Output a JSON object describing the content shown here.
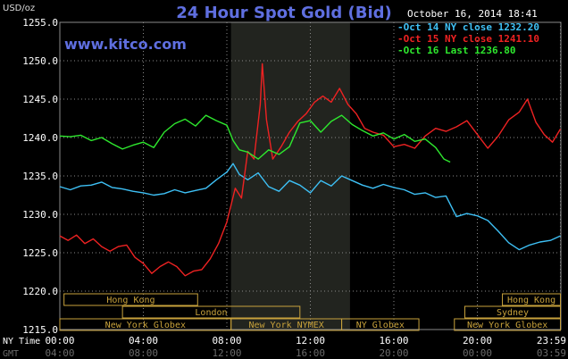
{
  "header": {
    "title": "24 Hour Spot Gold (Bid)",
    "watermark": "www.kitco.com",
    "unit": "USD/oz",
    "timestamp": "October 16, 2014 18:41"
  },
  "colors": {
    "background": "#000000",
    "frame": "#8a8a8a",
    "highlight": "#22241f",
    "market_box": "#c8a23c",
    "tick_text": "#ffffff",
    "axis_label_top": "#ffffff",
    "axis_label_bottom": "#6a6a6a"
  },
  "chart_data": {
    "type": "line",
    "title": "24 Hour Spot Gold (Bid)",
    "ylabel": "USD/oz",
    "ylim": [
      1215,
      1255
    ],
    "yticks": [
      "1255.0",
      "1250.0",
      "1245.0",
      "1240.0",
      "1235.0",
      "1230.0",
      "1225.0",
      "1220.0",
      "1215.0"
    ],
    "ytick_values": [
      1255,
      1250,
      1245,
      1240,
      1235,
      1230,
      1225,
      1220,
      1215
    ],
    "xlim": [
      0,
      24
    ],
    "x_axis_rows": [
      {
        "label": "NY Time",
        "ticks": [
          "00:00",
          "04:00",
          "08:00",
          "12:00",
          "16:00",
          "20:00",
          "23:59"
        ]
      },
      {
        "label": "GMT",
        "ticks": [
          "04:00",
          "08:00",
          "12:00",
          "16:00",
          "20:00",
          "00:00",
          "03:59"
        ]
      }
    ],
    "xtick_hours": [
      0,
      4,
      8,
      12,
      16,
      20,
      23.98
    ],
    "highlight_hours": [
      8.2,
      13.9
    ],
    "grid": true,
    "legend_position": "top-right",
    "series": [
      {
        "name": "Oct 14 NY close 1232.20",
        "color": "#3ec0f5",
        "points": [
          [
            0,
            1233.6
          ],
          [
            0.5,
            1233.2
          ],
          [
            1,
            1233.7
          ],
          [
            1.5,
            1233.8
          ],
          [
            2,
            1234.2
          ],
          [
            2.5,
            1233.5
          ],
          [
            3,
            1233.3
          ],
          [
            3.5,
            1233.0
          ],
          [
            4,
            1232.8
          ],
          [
            4.5,
            1232.5
          ],
          [
            5,
            1232.7
          ],
          [
            5.5,
            1233.2
          ],
          [
            6,
            1232.8
          ],
          [
            6.5,
            1233.1
          ],
          [
            7,
            1233.4
          ],
          [
            7.5,
            1234.5
          ],
          [
            8,
            1235.5
          ],
          [
            8.3,
            1236.6
          ],
          [
            8.6,
            1235.2
          ],
          [
            9,
            1234.5
          ],
          [
            9.5,
            1235.4
          ],
          [
            10,
            1233.6
          ],
          [
            10.5,
            1233.0
          ],
          [
            11,
            1234.4
          ],
          [
            11.5,
            1233.8
          ],
          [
            12,
            1232.8
          ],
          [
            12.5,
            1234.4
          ],
          [
            13,
            1233.7
          ],
          [
            13.5,
            1235.0
          ],
          [
            14,
            1234.4
          ],
          [
            14.5,
            1233.8
          ],
          [
            15,
            1233.4
          ],
          [
            15.5,
            1233.9
          ],
          [
            16,
            1233.5
          ],
          [
            16.5,
            1233.2
          ],
          [
            17,
            1232.6
          ],
          [
            17.5,
            1232.8
          ],
          [
            18,
            1232.2
          ],
          [
            18.5,
            1232.4
          ],
          [
            19,
            1229.7
          ],
          [
            19.5,
            1230.1
          ],
          [
            20,
            1229.8
          ],
          [
            20.5,
            1229.2
          ],
          [
            21,
            1227.8
          ],
          [
            21.5,
            1226.3
          ],
          [
            22,
            1225.4
          ],
          [
            22.5,
            1226.0
          ],
          [
            23,
            1226.4
          ],
          [
            23.5,
            1226.6
          ],
          [
            23.98,
            1227.2
          ]
        ]
      },
      {
        "name": "Oct 15 NY close 1241.10",
        "color": "#ee2222",
        "points": [
          [
            0,
            1227.2
          ],
          [
            0.4,
            1226.6
          ],
          [
            0.8,
            1227.3
          ],
          [
            1.2,
            1226.2
          ],
          [
            1.6,
            1226.8
          ],
          [
            2,
            1225.8
          ],
          [
            2.4,
            1225.2
          ],
          [
            2.8,
            1225.8
          ],
          [
            3.2,
            1226.0
          ],
          [
            3.6,
            1224.4
          ],
          [
            4,
            1223.6
          ],
          [
            4.4,
            1222.3
          ],
          [
            4.8,
            1223.2
          ],
          [
            5.2,
            1223.8
          ],
          [
            5.6,
            1223.2
          ],
          [
            6,
            1222.0
          ],
          [
            6.4,
            1222.6
          ],
          [
            6.8,
            1222.8
          ],
          [
            7.2,
            1224.2
          ],
          [
            7.6,
            1226.2
          ],
          [
            8,
            1229.0
          ],
          [
            8.4,
            1233.4
          ],
          [
            8.7,
            1232.1
          ],
          [
            9,
            1238.2
          ],
          [
            9.3,
            1237.2
          ],
          [
            9.6,
            1244.3
          ],
          [
            9.7,
            1249.6
          ],
          [
            9.9,
            1242.3
          ],
          [
            10.2,
            1237.2
          ],
          [
            10.6,
            1238.8
          ],
          [
            11,
            1240.7
          ],
          [
            11.4,
            1242.1
          ],
          [
            11.8,
            1243.1
          ],
          [
            12.2,
            1244.6
          ],
          [
            12.6,
            1245.4
          ],
          [
            13,
            1244.6
          ],
          [
            13.4,
            1246.4
          ],
          [
            13.8,
            1244.3
          ],
          [
            14.2,
            1243.1
          ],
          [
            14.6,
            1241.2
          ],
          [
            15,
            1240.7
          ],
          [
            15.5,
            1240.3
          ],
          [
            16,
            1238.8
          ],
          [
            16.5,
            1239.1
          ],
          [
            17,
            1238.6
          ],
          [
            17.5,
            1240.2
          ],
          [
            18,
            1241.2
          ],
          [
            18.5,
            1240.8
          ],
          [
            19,
            1241.4
          ],
          [
            19.5,
            1242.2
          ],
          [
            20,
            1240.4
          ],
          [
            20.5,
            1238.6
          ],
          [
            21,
            1240.2
          ],
          [
            21.5,
            1242.3
          ],
          [
            22,
            1243.3
          ],
          [
            22.4,
            1245.0
          ],
          [
            22.8,
            1242.0
          ],
          [
            23.2,
            1240.4
          ],
          [
            23.6,
            1239.4
          ],
          [
            23.98,
            1241.1
          ]
        ]
      },
      {
        "name": "Oct 16 Last 1236.80",
        "color": "#2ee82e",
        "points": [
          [
            0,
            1240.2
          ],
          [
            0.5,
            1240.1
          ],
          [
            1,
            1240.3
          ],
          [
            1.5,
            1239.6
          ],
          [
            2,
            1240.0
          ],
          [
            2.5,
            1239.2
          ],
          [
            3,
            1238.5
          ],
          [
            3.5,
            1239.0
          ],
          [
            4,
            1239.4
          ],
          [
            4.5,
            1238.7
          ],
          [
            5,
            1240.7
          ],
          [
            5.5,
            1241.8
          ],
          [
            6,
            1242.4
          ],
          [
            6.5,
            1241.5
          ],
          [
            7,
            1242.9
          ],
          [
            7.5,
            1242.2
          ],
          [
            8,
            1241.6
          ],
          [
            8.3,
            1239.6
          ],
          [
            8.6,
            1238.4
          ],
          [
            9,
            1238.1
          ],
          [
            9.5,
            1237.2
          ],
          [
            10,
            1238.4
          ],
          [
            10.5,
            1237.8
          ],
          [
            11,
            1238.8
          ],
          [
            11.5,
            1241.9
          ],
          [
            12,
            1242.2
          ],
          [
            12.5,
            1240.7
          ],
          [
            13,
            1242.1
          ],
          [
            13.5,
            1242.9
          ],
          [
            14,
            1241.7
          ],
          [
            14.5,
            1240.9
          ],
          [
            15,
            1240.2
          ],
          [
            15.5,
            1240.6
          ],
          [
            16,
            1239.8
          ],
          [
            16.5,
            1240.4
          ],
          [
            17,
            1239.5
          ],
          [
            17.5,
            1239.8
          ],
          [
            18,
            1238.7
          ],
          [
            18.4,
            1237.2
          ],
          [
            18.7,
            1236.8
          ]
        ]
      }
    ],
    "market_sessions": [
      {
        "label": "Hong Kong",
        "row": 0,
        "start": 0.2,
        "end": 6.6
      },
      {
        "label": "Hong Kong",
        "row": 0,
        "start": 21.2,
        "end": 23.98
      },
      {
        "label": "London",
        "row": 1,
        "start": 3.0,
        "end": 11.5
      },
      {
        "label": "Sydney",
        "row": 1,
        "start": 19.4,
        "end": 23.98
      },
      {
        "label": "New York Globex",
        "row": 2,
        "start": 0,
        "end": 8.2
      },
      {
        "label": "New York NYMEX",
        "row": 2,
        "start": 8.2,
        "end": 13.5
      },
      {
        "label": "NY Globex",
        "row": 2,
        "start": 13.5,
        "end": 17.2
      },
      {
        "label": "New York Globex",
        "row": 2,
        "start": 18.9,
        "end": 23.98
      }
    ]
  }
}
